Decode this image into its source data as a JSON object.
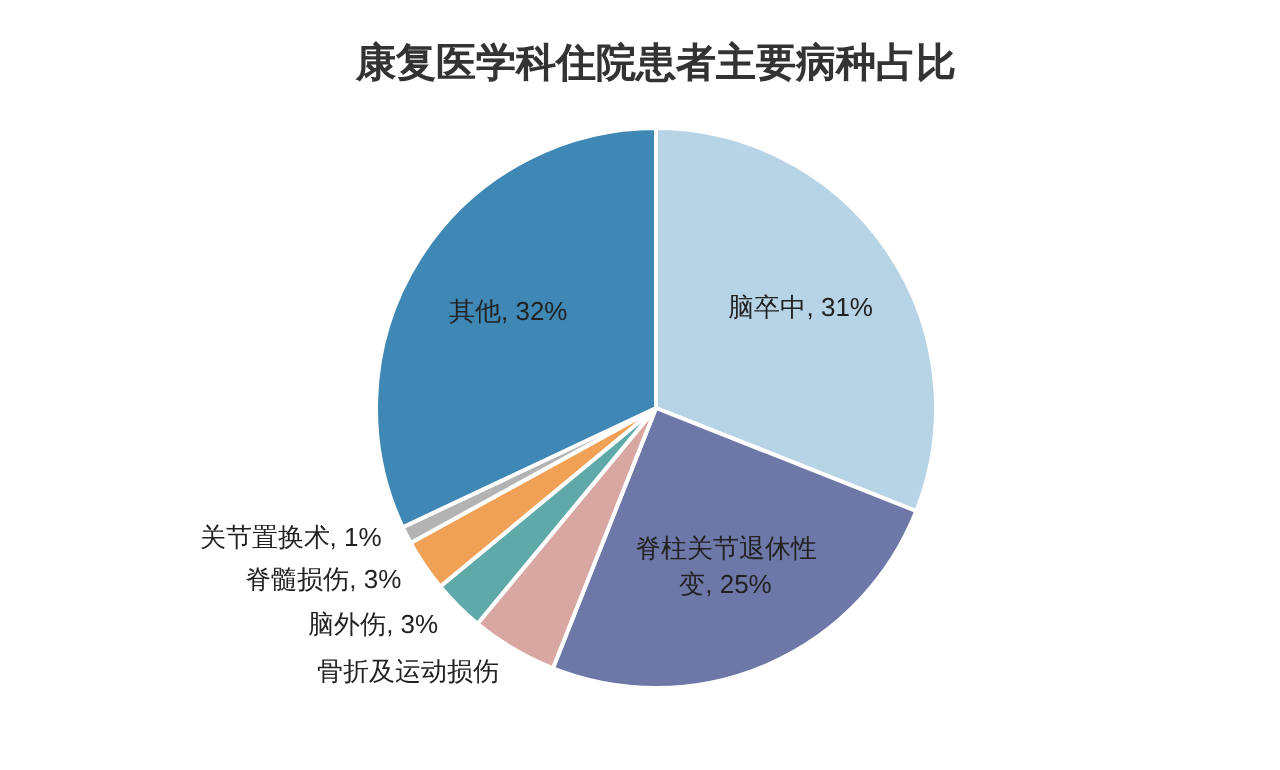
{
  "chart_data": {
    "type": "pie",
    "title": "康复医学科住院患者主要病种占比",
    "categories": [
      "脑卒中",
      "脊柱关节退休性变",
      "骨折及运动损伤",
      "脑外伤",
      "脊髓损伤",
      "关节置换术",
      "其他"
    ],
    "values": [
      31,
      25,
      5,
      3,
      3,
      1,
      32
    ],
    "value_labels": [
      "31%",
      "25%",
      null,
      "3%",
      "3%",
      "1%",
      "32%"
    ],
    "colors": [
      "#b7d3e6",
      "#6d78a8",
      "#d9a7a2",
      "#5fa9a9",
      "#f0a155",
      "#b3b3b3",
      "#3f87b4"
    ]
  }
}
